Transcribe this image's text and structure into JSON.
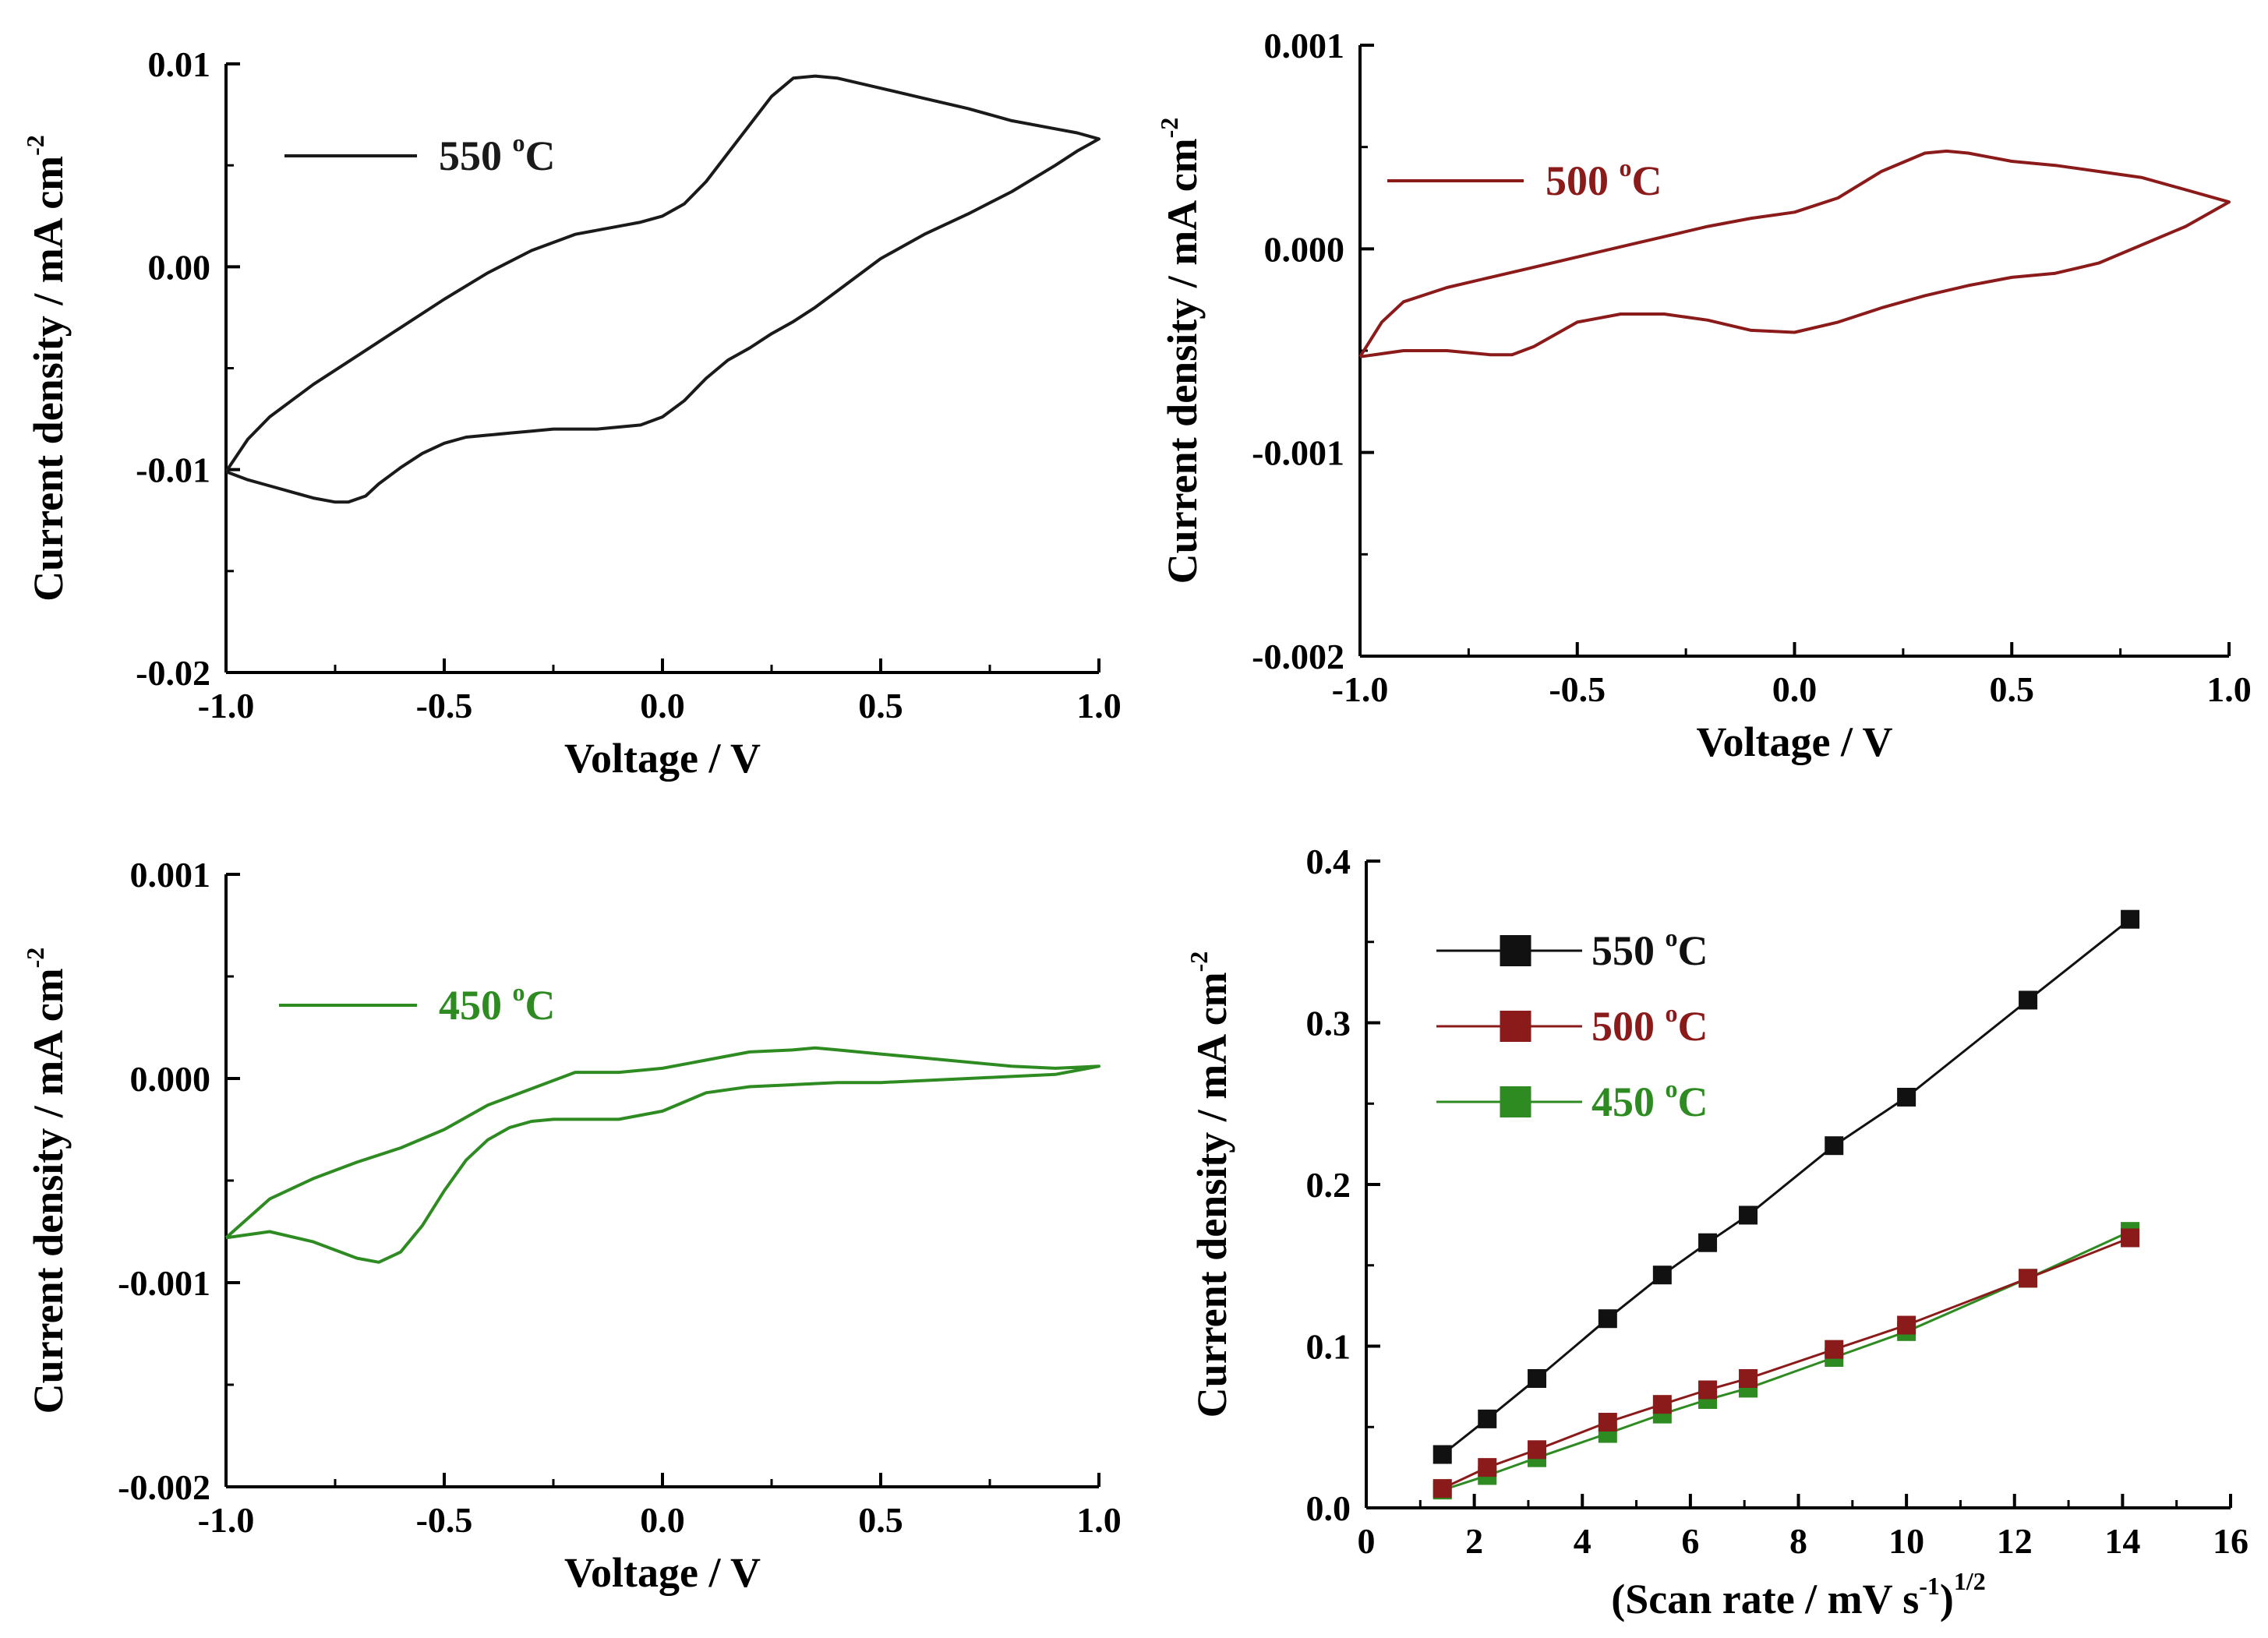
{
  "chart_data": [
    {
      "id": "cv550",
      "type": "line",
      "title": "",
      "xlabel": "Voltage / V",
      "ylabel": "Current density / mA cm",
      "ylabel_sup": "-2",
      "xlim": [
        -1.0,
        1.0
      ],
      "ylim": [
        -0.02,
        0.01
      ],
      "xticks": [
        "-1.0",
        "-0.5",
        "0.0",
        "0.5",
        "1.0"
      ],
      "yticks": [
        "0.01",
        "0.00",
        "-0.01",
        "-0.02"
      ],
      "legend": {
        "label": "550 ",
        "sup": "o",
        "suffix": "C",
        "color": "#1a1a1a",
        "placement": "top-left"
      },
      "series": [
        {
          "name": "550 °C",
          "color": "#1a1a1a",
          "x": [
            -1.0,
            -0.95,
            -0.9,
            -0.85,
            -0.8,
            -0.75,
            -0.72,
            -0.68,
            -0.65,
            -0.6,
            -0.55,
            -0.5,
            -0.45,
            -0.4,
            -0.35,
            -0.3,
            -0.25,
            -0.2,
            -0.15,
            -0.1,
            -0.05,
            0.0,
            0.05,
            0.1,
            0.15,
            0.2,
            0.25,
            0.3,
            0.35,
            0.4,
            0.5,
            0.6,
            0.7,
            0.8,
            0.9,
            0.95,
            1.0,
            0.95,
            0.9,
            0.8,
            0.7,
            0.6,
            0.5,
            0.4,
            0.35,
            0.3,
            0.25,
            0.2,
            0.15,
            0.1,
            0.05,
            0.0,
            -0.05,
            -0.1,
            -0.2,
            -0.3,
            -0.4,
            -0.5,
            -0.6,
            -0.7,
            -0.8,
            -0.9,
            -0.95,
            -1.0
          ],
          "y": [
            -0.0101,
            -0.0105,
            -0.0108,
            -0.0111,
            -0.0114,
            -0.0116,
            -0.0116,
            -0.0113,
            -0.0107,
            -0.0099,
            -0.0092,
            -0.0087,
            -0.0084,
            -0.0083,
            -0.0082,
            -0.0081,
            -0.008,
            -0.008,
            -0.008,
            -0.0079,
            -0.0078,
            -0.0074,
            -0.0066,
            -0.0055,
            -0.0046,
            -0.004,
            -0.0033,
            -0.0027,
            -0.002,
            -0.0012,
            0.0004,
            0.0016,
            0.0026,
            0.0037,
            0.005,
            0.0057,
            0.0063,
            0.0066,
            0.0068,
            0.0072,
            0.0078,
            0.0083,
            0.0088,
            0.0093,
            0.0094,
            0.0093,
            0.0084,
            0.007,
            0.0056,
            0.0042,
            0.0031,
            0.0025,
            0.0022,
            0.002,
            0.0016,
            0.0008,
            -0.0003,
            -0.0016,
            -0.003,
            -0.0044,
            -0.0058,
            -0.0074,
            -0.0085,
            -0.0101
          ]
        }
      ]
    },
    {
      "id": "cv500",
      "type": "line",
      "title": "",
      "xlabel": "Voltage / V",
      "ylabel": "Current density / mA cm",
      "ylabel_sup": "-2",
      "xlim": [
        -1.0,
        1.0
      ],
      "ylim": [
        -0.002,
        0.001
      ],
      "xticks": [
        "-1.0",
        "-0.5",
        "0.0",
        "0.5",
        "1.0"
      ],
      "yticks": [
        "0.001",
        "0.000",
        "-0.001",
        "-0.002"
      ],
      "legend": {
        "label": "500 ",
        "sup": "o",
        "suffix": "C",
        "color": "#8b1a1a",
        "placement": "top-left"
      },
      "series": [
        {
          "name": "500 °C",
          "color": "#8b1a1a",
          "x": [
            -1.0,
            -0.9,
            -0.8,
            -0.7,
            -0.65,
            -0.6,
            -0.5,
            -0.4,
            -0.3,
            -0.2,
            -0.1,
            0.0,
            0.1,
            0.2,
            0.3,
            0.4,
            0.5,
            0.6,
            0.7,
            0.8,
            0.9,
            1.0,
            0.9,
            0.8,
            0.7,
            0.6,
            0.5,
            0.4,
            0.35,
            0.3,
            0.2,
            0.1,
            0.0,
            -0.1,
            -0.2,
            -0.3,
            -0.4,
            -0.5,
            -0.6,
            -0.7,
            -0.8,
            -0.9,
            -0.95,
            -1.0
          ],
          "y": [
            -0.00053,
            -0.0005,
            -0.0005,
            -0.00052,
            -0.00052,
            -0.00048,
            -0.00036,
            -0.00032,
            -0.00032,
            -0.00035,
            -0.0004,
            -0.00041,
            -0.00036,
            -0.00029,
            -0.00023,
            -0.00018,
            -0.00014,
            -0.00012,
            -7e-05,
            2e-05,
            0.00011,
            0.00023,
            0.00029,
            0.00035,
            0.00038,
            0.00041,
            0.00043,
            0.00047,
            0.00048,
            0.00047,
            0.00038,
            0.00025,
            0.00018,
            0.00015,
            0.00011,
            6e-05,
            1e-05,
            -4e-05,
            -9e-05,
            -0.00014,
            -0.00019,
            -0.00026,
            -0.00036,
            -0.00053
          ]
        }
      ]
    },
    {
      "id": "cv450",
      "type": "line",
      "title": "",
      "xlabel": "Voltage / V",
      "ylabel": "Current density / mA cm",
      "ylabel_sup": "-2",
      "xlim": [
        -1.0,
        1.0
      ],
      "ylim": [
        -0.002,
        0.001
      ],
      "xticks": [
        "-1.0",
        "-0.5",
        "0.0",
        "0.5",
        "1.0"
      ],
      "yticks": [
        "0.001",
        "0.000",
        "-0.001",
        "-0.002"
      ],
      "legend": {
        "label": "450 ",
        "sup": "o",
        "suffix": "C",
        "color": "#2e8b22",
        "placement": "top-left"
      },
      "series": [
        {
          "name": "450 °C",
          "color": "#2e8b22",
          "x": [
            -1.0,
            -0.9,
            -0.8,
            -0.7,
            -0.65,
            -0.6,
            -0.55,
            -0.5,
            -0.45,
            -0.4,
            -0.35,
            -0.3,
            -0.25,
            -0.2,
            -0.1,
            0.0,
            0.1,
            0.2,
            0.3,
            0.4,
            0.5,
            0.6,
            0.7,
            0.8,
            0.9,
            1.0,
            0.9,
            0.8,
            0.7,
            0.6,
            0.5,
            0.4,
            0.35,
            0.3,
            0.2,
            0.1,
            0.0,
            -0.1,
            -0.2,
            -0.3,
            -0.4,
            -0.5,
            -0.6,
            -0.7,
            -0.8,
            -0.9,
            -1.0
          ],
          "y": [
            -0.00078,
            -0.00075,
            -0.0008,
            -0.00088,
            -0.0009,
            -0.00085,
            -0.00072,
            -0.00055,
            -0.0004,
            -0.0003,
            -0.00024,
            -0.00021,
            -0.0002,
            -0.0002,
            -0.0002,
            -0.00016,
            -7e-05,
            -4e-05,
            -3e-05,
            -2e-05,
            -2e-05,
            -1e-05,
            0.0,
            1e-05,
            2e-05,
            6e-05,
            5e-05,
            6e-05,
            8e-05,
            0.0001,
            0.00012,
            0.00014,
            0.00015,
            0.00014,
            0.00013,
            9e-05,
            5e-05,
            3e-05,
            3e-05,
            -5e-05,
            -0.00013,
            -0.00025,
            -0.00034,
            -0.00041,
            -0.00049,
            -0.00059,
            -0.00078
          ]
        }
      ]
    },
    {
      "id": "peak",
      "type": "line",
      "title": "",
      "xlabel": "(Scan rate / mV s",
      "xlabel_sup1": "-1",
      "xlabel_mid": ")",
      "xlabel_sup2": "1/2",
      "ylabel": "Current density / mA cm",
      "ylabel_sup": "-2",
      "xlim": [
        0,
        16
      ],
      "ylim": [
        0.0,
        0.4
      ],
      "xticks": [
        "0",
        "2",
        "4",
        "6",
        "8",
        "10",
        "12",
        "14",
        "16"
      ],
      "yticks": [
        "0.4",
        "0.3",
        "0.2",
        "0.1",
        "0.0"
      ],
      "legend_placement": "top-left",
      "x": [
        1.41,
        2.24,
        3.16,
        4.47,
        5.48,
        6.32,
        7.07,
        8.66,
        10.0,
        12.25,
        14.14
      ],
      "series": [
        {
          "name": "550 ",
          "sup": "o",
          "suffix": "C",
          "color": "#111111",
          "values": [
            0.033,
            0.055,
            0.08,
            0.117,
            0.144,
            0.164,
            0.181,
            0.224,
            0.254,
            0.314,
            0.364
          ]
        },
        {
          "name": "500 ",
          "sup": "o",
          "suffix": "C",
          "color": "#8b1a1a",
          "values": [
            0.012,
            0.025,
            0.036,
            0.053,
            0.064,
            0.073,
            0.08,
            0.098,
            0.113,
            0.142,
            0.167
          ]
        },
        {
          "name": "450 ",
          "sup": "o",
          "suffix": "C",
          "color": "#2e8b22",
          "values": [
            0.011,
            0.02,
            0.031,
            0.046,
            0.058,
            0.067,
            0.074,
            0.093,
            0.109,
            0.142,
            0.171
          ]
        }
      ]
    }
  ]
}
